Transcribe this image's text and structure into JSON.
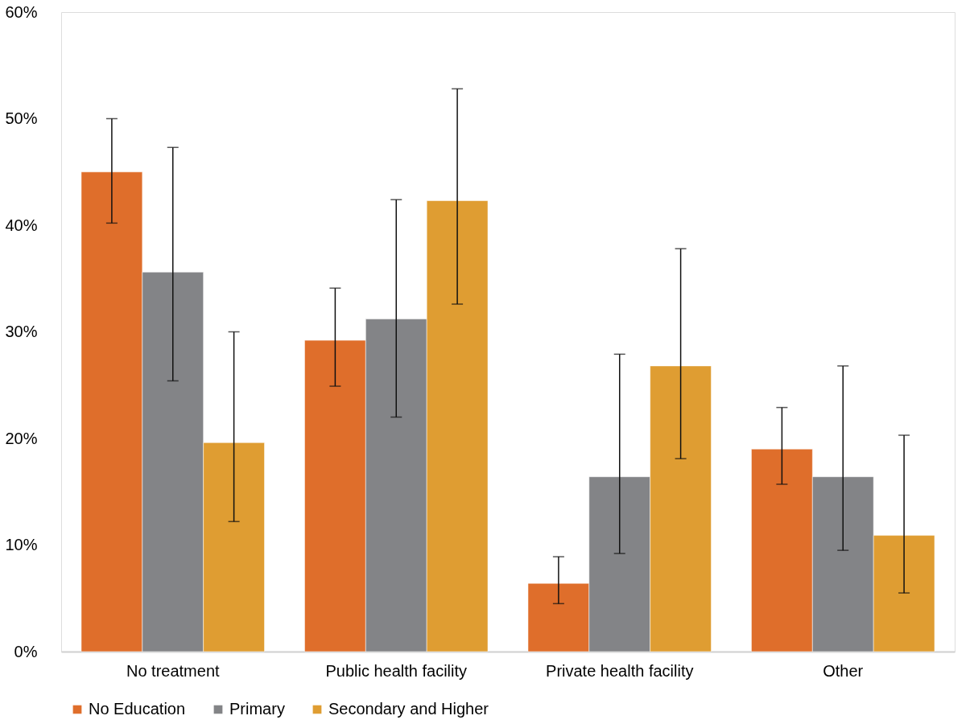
{
  "chart_data": {
    "type": "bar",
    "categories": [
      "No treatment",
      "Public health facility",
      "Private health facility",
      "Other"
    ],
    "series": [
      {
        "name": "No Education",
        "color": "#df6e2b",
        "values": [
          45.0,
          29.2,
          6.4,
          19.0
        ],
        "errors": [
          [
            40.2,
            50.0
          ],
          [
            24.9,
            34.1
          ],
          [
            4.5,
            8.9
          ],
          [
            15.7,
            22.9
          ]
        ]
      },
      {
        "name": "Primary",
        "color": "#838487",
        "values": [
          35.6,
          31.2,
          16.4,
          16.4
        ],
        "errors": [
          [
            25.4,
            47.3
          ],
          [
            22.0,
            42.4
          ],
          [
            9.2,
            27.9
          ],
          [
            9.5,
            26.8
          ]
        ]
      },
      {
        "name": "Secondary and Higher",
        "color": "#df9d32",
        "values": [
          19.6,
          42.3,
          26.8,
          10.9
        ],
        "errors": [
          [
            12.2,
            30.0
          ],
          [
            32.6,
            52.8
          ],
          [
            18.1,
            37.8
          ],
          [
            5.5,
            20.3
          ]
        ]
      }
    ],
    "ylim": [
      0,
      60
    ],
    "yticks": [
      {
        "value": 0,
        "label": "0%"
      },
      {
        "value": 10,
        "label": "10%"
      },
      {
        "value": 20,
        "label": "20%"
      },
      {
        "value": 30,
        "label": "30%"
      },
      {
        "value": 40,
        "label": "40%"
      },
      {
        "value": 50,
        "label": "50%"
      },
      {
        "value": 60,
        "label": "60%"
      }
    ],
    "grid": false,
    "legend": "bottom"
  }
}
